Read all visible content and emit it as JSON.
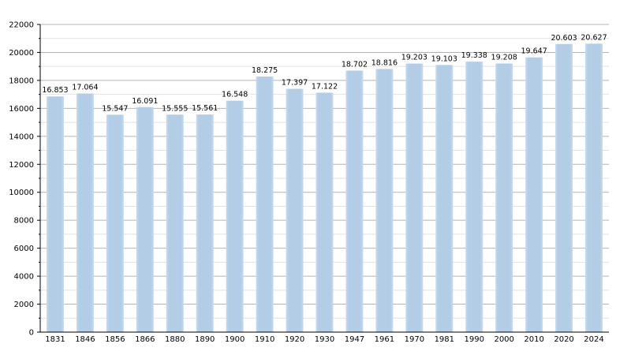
{
  "chart_data": {
    "type": "bar",
    "categories": [
      "1831",
      "1846",
      "1856",
      "1866",
      "1880",
      "1890",
      "1900",
      "1910",
      "1920",
      "1930",
      "1947",
      "1961",
      "1970",
      "1981",
      "1990",
      "2000",
      "2010",
      "2020",
      "2024"
    ],
    "values": [
      16853,
      17064,
      15547,
      16091,
      15555,
      15561,
      16548,
      18275,
      17397,
      17122,
      18702,
      18816,
      19203,
      19103,
      19338,
      19208,
      19647,
      20603,
      20627
    ],
    "value_labels": [
      "16.853",
      "17.064",
      "15.547",
      "16.091",
      "15.555",
      "15.561",
      "16.548",
      "18.275",
      "17.397",
      "17.122",
      "18.702",
      "18.816",
      "19.203",
      "19.103",
      "19.338",
      "19.208",
      "19.647",
      "20.603",
      "20.627"
    ],
    "yticks": [
      "0",
      "2000",
      "4000",
      "6000",
      "8000",
      "10000",
      "12000",
      "14000",
      "16000",
      "18000",
      "20000",
      "22000"
    ],
    "ylim": [
      0,
      22000
    ],
    "ytick_step": 2000,
    "grid": true,
    "bar_color": "#b3cde6",
    "title": "",
    "xlabel": "",
    "ylabel": ""
  }
}
